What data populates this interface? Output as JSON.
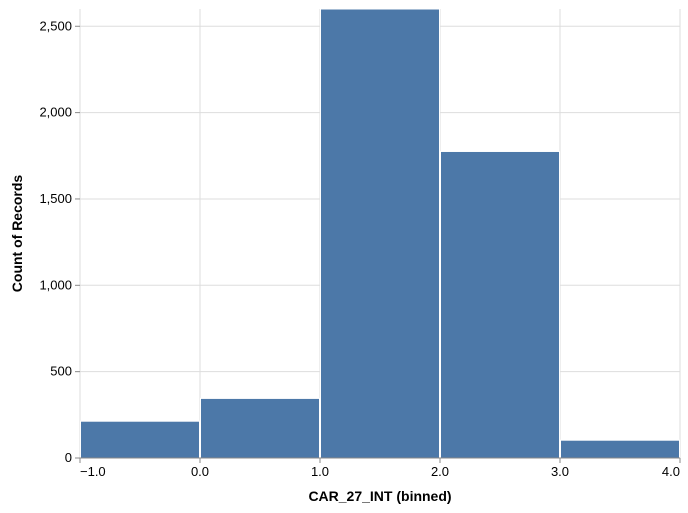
{
  "chart_data": {
    "type": "bar",
    "xlabel": "CAR_27_INT (binned)",
    "ylabel": "Count of Records",
    "bins": [
      {
        "start": -1.0,
        "end": 0.0,
        "count": 213
      },
      {
        "start": 0.0,
        "end": 1.0,
        "count": 345
      },
      {
        "start": 1.0,
        "end": 2.0,
        "count": 2600
      },
      {
        "start": 2.0,
        "end": 3.0,
        "count": 1775
      },
      {
        "start": 3.0,
        "end": 4.0,
        "count": 103
      }
    ],
    "x_ticks": [
      "−1.0",
      "0.0",
      "1.0",
      "2.0",
      "3.0",
      "4.0"
    ],
    "y_ticks": [
      "0",
      "500",
      "1,000",
      "1,500",
      "2,000",
      "2,500"
    ],
    "xlim": [
      -1.0,
      4.0
    ],
    "ylim": [
      0,
      2600
    ],
    "grid": true,
    "bar_color": "#4c78a8",
    "grid_color": "#dddddd",
    "axis_color": "#888888"
  }
}
